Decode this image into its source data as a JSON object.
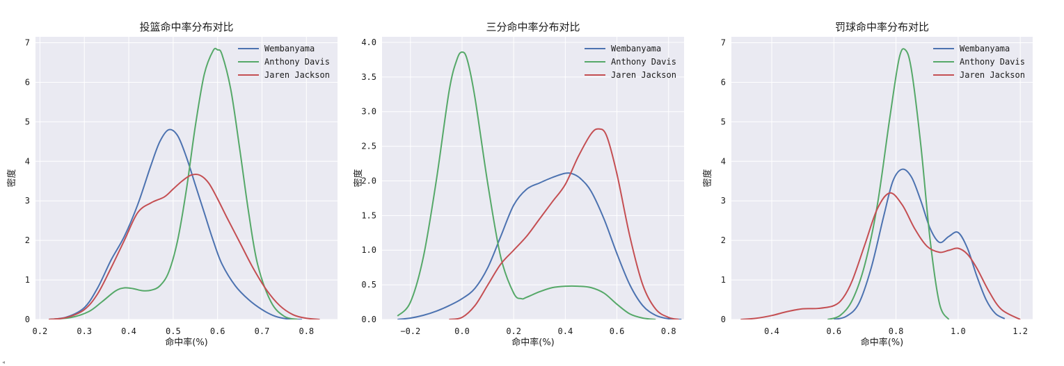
{
  "chart_data": [
    {
      "type": "line",
      "title": "投篮命中率分布对比",
      "xlabel": "命中率(%)",
      "ylabel": "密度",
      "xlim": [
        0.19,
        0.87
      ],
      "ylim": [
        0,
        7.15
      ],
      "xticks": [
        0.2,
        0.3,
        0.4,
        0.5,
        0.6,
        0.7,
        0.8
      ],
      "xtick_labels": [
        "0.2",
        "0.3",
        "0.4",
        "0.5",
        "0.6",
        "0.7",
        "0.8"
      ],
      "yticks": [
        0,
        1,
        2,
        3,
        4,
        5,
        6,
        7
      ],
      "ytick_labels": [
        "0",
        "1",
        "2",
        "3",
        "4",
        "5",
        "6",
        "7"
      ],
      "grid": true,
      "legend": "top-right",
      "series": [
        {
          "name": "Wembanyama",
          "color": "#4c72b0",
          "x": [
            0.22,
            0.26,
            0.3,
            0.33,
            0.36,
            0.39,
            0.42,
            0.45,
            0.47,
            0.49,
            0.51,
            0.53,
            0.55,
            0.57,
            0.59,
            0.61,
            0.64,
            0.67,
            0.7,
            0.73,
            0.76,
            0.79
          ],
          "y": [
            0.0,
            0.06,
            0.3,
            0.8,
            1.5,
            2.1,
            2.9,
            3.9,
            4.5,
            4.8,
            4.65,
            4.1,
            3.4,
            2.7,
            2.0,
            1.4,
            0.85,
            0.5,
            0.25,
            0.08,
            0.01,
            0.0
          ]
        },
        {
          "name": "Anthony Davis",
          "color": "#55a868",
          "x": [
            0.22,
            0.27,
            0.31,
            0.34,
            0.37,
            0.39,
            0.41,
            0.43,
            0.45,
            0.47,
            0.49,
            0.51,
            0.53,
            0.55,
            0.57,
            0.59,
            0.6,
            0.61,
            0.63,
            0.65,
            0.67,
            0.69,
            0.72,
            0.75,
            0.78
          ],
          "y": [
            0.0,
            0.05,
            0.2,
            0.45,
            0.72,
            0.8,
            0.78,
            0.73,
            0.74,
            0.85,
            1.2,
            2.0,
            3.3,
            4.9,
            6.2,
            6.8,
            6.82,
            6.7,
            5.8,
            4.3,
            2.7,
            1.4,
            0.45,
            0.08,
            0.0
          ]
        },
        {
          "name": "Jaren Jackson",
          "color": "#c44e52",
          "x": [
            0.22,
            0.26,
            0.3,
            0.33,
            0.36,
            0.39,
            0.42,
            0.45,
            0.48,
            0.5,
            0.52,
            0.54,
            0.56,
            0.58,
            0.6,
            0.62,
            0.65,
            0.68,
            0.71,
            0.74,
            0.77,
            0.8,
            0.83
          ],
          "y": [
            0.0,
            0.05,
            0.25,
            0.65,
            1.3,
            2.0,
            2.7,
            2.95,
            3.1,
            3.3,
            3.5,
            3.65,
            3.65,
            3.45,
            3.05,
            2.6,
            1.95,
            1.3,
            0.75,
            0.35,
            0.12,
            0.03,
            0.0
          ]
        }
      ]
    },
    {
      "type": "line",
      "title": "三分命中率分布对比",
      "xlabel": "命中率(%)",
      "ylabel": "密度",
      "xlim": [
        -0.31,
        0.86
      ],
      "ylim": [
        0,
        4.08
      ],
      "xticks": [
        -0.2,
        0.0,
        0.2,
        0.4,
        0.6,
        0.8
      ],
      "xtick_labels": [
        "−0.2",
        "0.0",
        "0.2",
        "0.4",
        "0.6",
        "0.8"
      ],
      "yticks": [
        0,
        0.5,
        1.0,
        1.5,
        2.0,
        2.5,
        3.0,
        3.5,
        4.0
      ],
      "ytick_labels": [
        "0.0",
        "0.5",
        "1.0",
        "1.5",
        "2.0",
        "2.5",
        "3.0",
        "3.5",
        "4.0"
      ],
      "grid": true,
      "legend": "top-right",
      "series": [
        {
          "name": "Wembanyama",
          "color": "#4c72b0",
          "x": [
            -0.25,
            -0.2,
            -0.15,
            -0.1,
            -0.05,
            0.0,
            0.05,
            0.1,
            0.15,
            0.2,
            0.25,
            0.3,
            0.35,
            0.4,
            0.43,
            0.46,
            0.5,
            0.55,
            0.6,
            0.65,
            0.7,
            0.75,
            0.8,
            0.85
          ],
          "y": [
            0.0,
            0.02,
            0.06,
            0.12,
            0.2,
            0.3,
            0.45,
            0.75,
            1.2,
            1.65,
            1.88,
            1.97,
            2.05,
            2.11,
            2.1,
            2.03,
            1.85,
            1.45,
            0.95,
            0.5,
            0.2,
            0.06,
            0.01,
            0.0
          ]
        },
        {
          "name": "Anthony Davis",
          "color": "#55a868",
          "x": [
            -0.25,
            -0.2,
            -0.15,
            -0.1,
            -0.05,
            -0.02,
            0.0,
            0.02,
            0.05,
            0.1,
            0.15,
            0.2,
            0.23,
            0.25,
            0.3,
            0.35,
            0.4,
            0.45,
            0.5,
            0.55,
            0.6,
            0.65,
            0.7,
            0.75
          ],
          "y": [
            0.05,
            0.25,
            0.9,
            2.0,
            3.3,
            3.75,
            3.86,
            3.75,
            3.2,
            1.95,
            0.9,
            0.38,
            0.3,
            0.32,
            0.4,
            0.46,
            0.48,
            0.48,
            0.46,
            0.38,
            0.22,
            0.08,
            0.02,
            0.0
          ]
        },
        {
          "name": "Jaren Jackson",
          "color": "#c44e52",
          "x": [
            -0.05,
            0.0,
            0.05,
            0.1,
            0.15,
            0.2,
            0.25,
            0.3,
            0.35,
            0.4,
            0.45,
            0.5,
            0.53,
            0.56,
            0.6,
            0.65,
            0.7,
            0.75,
            0.8,
            0.84
          ],
          "y": [
            0.0,
            0.03,
            0.2,
            0.5,
            0.8,
            1.0,
            1.2,
            1.45,
            1.7,
            1.95,
            2.35,
            2.68,
            2.75,
            2.65,
            2.1,
            1.2,
            0.5,
            0.15,
            0.03,
            0.0
          ]
        }
      ]
    },
    {
      "type": "line",
      "title": "罚球命中率分布对比",
      "xlabel": "命中率(%)",
      "ylabel": "密度",
      "xlim": [
        0.27,
        1.24
      ],
      "ylim": [
        0,
        7.15
      ],
      "xticks": [
        0.4,
        0.6,
        0.8,
        1.0,
        1.2
      ],
      "xtick_labels": [
        "0.4",
        "0.6",
        "0.8",
        "1.0",
        "1.2"
      ],
      "yticks": [
        0,
        1,
        2,
        3,
        4,
        5,
        6,
        7
      ],
      "ytick_labels": [
        "0",
        "1",
        "2",
        "3",
        "4",
        "5",
        "6",
        "7"
      ],
      "grid": true,
      "legend": "top-right",
      "series": [
        {
          "name": "Wembanyama",
          "color": "#4c72b0",
          "x": [
            0.6,
            0.64,
            0.68,
            0.72,
            0.76,
            0.79,
            0.82,
            0.85,
            0.88,
            0.91,
            0.94,
            0.97,
            1.0,
            1.03,
            1.06,
            1.09,
            1.12,
            1.15
          ],
          "y": [
            0.0,
            0.08,
            0.4,
            1.3,
            2.6,
            3.5,
            3.8,
            3.6,
            3.0,
            2.3,
            1.95,
            2.1,
            2.2,
            1.8,
            1.1,
            0.5,
            0.15,
            0.02
          ]
        },
        {
          "name": "Anthony Davis",
          "color": "#55a868",
          "x": [
            0.58,
            0.62,
            0.66,
            0.7,
            0.74,
            0.78,
            0.81,
            0.83,
            0.85,
            0.88,
            0.91,
            0.94,
            0.97
          ],
          "y": [
            0.0,
            0.1,
            0.5,
            1.4,
            2.9,
            5.1,
            6.6,
            6.82,
            6.3,
            4.4,
            2.0,
            0.4,
            0.0
          ]
        },
        {
          "name": "Jaren Jackson",
          "color": "#c44e52",
          "x": [
            0.3,
            0.35,
            0.4,
            0.45,
            0.5,
            0.55,
            0.6,
            0.63,
            0.66,
            0.7,
            0.74,
            0.78,
            0.82,
            0.86,
            0.9,
            0.94,
            0.97,
            1.0,
            1.03,
            1.06,
            1.1,
            1.14,
            1.2
          ],
          "y": [
            0.0,
            0.03,
            0.1,
            0.2,
            0.27,
            0.28,
            0.35,
            0.55,
            1.0,
            1.9,
            2.8,
            3.2,
            2.9,
            2.3,
            1.85,
            1.7,
            1.75,
            1.8,
            1.65,
            1.3,
            0.7,
            0.25,
            0.0
          ]
        }
      ]
    }
  ]
}
